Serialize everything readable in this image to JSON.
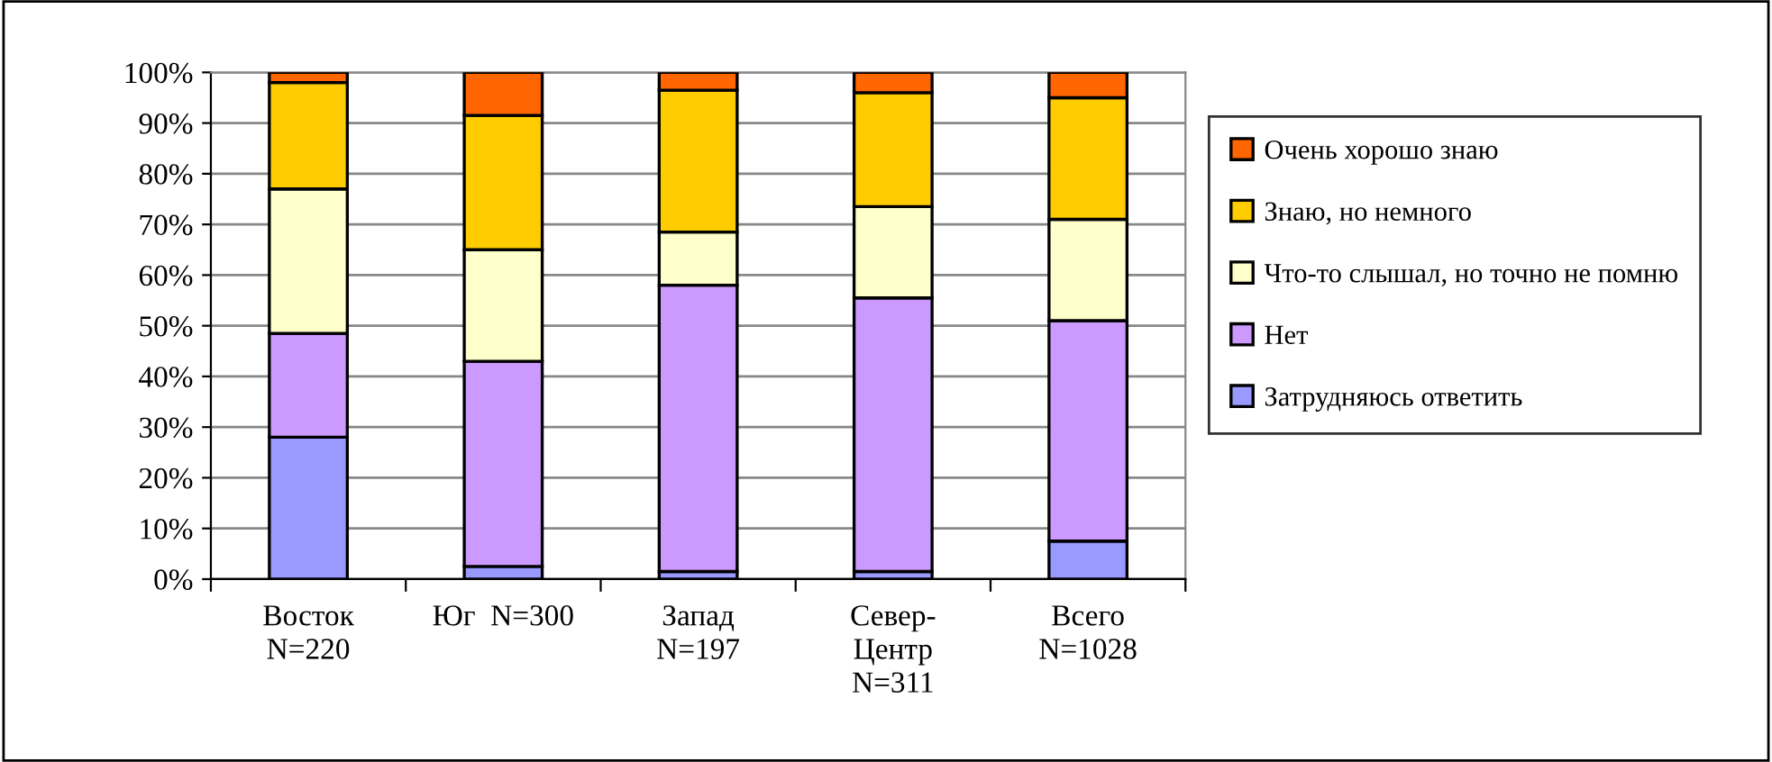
{
  "chart_data": {
    "type": "bar",
    "stacked": true,
    "categories": [
      "Восток\nN=220",
      "Юг  N=300",
      "Запад\nN=197",
      "Север-\nЦентр\nN=311",
      "Всего\nN=1028"
    ],
    "series": [
      {
        "name": "Затрудняюсь ответить",
        "color": "#9999ff",
        "values": [
          28,
          2.5,
          1.5,
          1.5,
          7.5
        ]
      },
      {
        "name": "Нет",
        "color": "#cc99ff",
        "values": [
          20.5,
          40.5,
          56.5,
          54,
          43.5
        ]
      },
      {
        "name": "Что-то слышал, но точно не помню",
        "color": "#ffffcc",
        "values": [
          28.5,
          22,
          10.5,
          18,
          20
        ]
      },
      {
        "name": "Знаю, но немного",
        "color": "#ffcc00",
        "values": [
          21,
          26.5,
          28,
          22.5,
          24
        ]
      },
      {
        "name": "Очень хорошо знаю",
        "color": "#ff6600",
        "values": [
          2,
          8.5,
          3.5,
          4,
          5
        ]
      }
    ],
    "ylim": [
      0,
      100
    ],
    "yticks": [
      {
        "value": 0,
        "label": "0%"
      },
      {
        "value": 10,
        "label": "10%"
      },
      {
        "value": 20,
        "label": "20%"
      },
      {
        "value": 30,
        "label": "30%"
      },
      {
        "value": 40,
        "label": "40%"
      },
      {
        "value": 50,
        "label": "50%"
      },
      {
        "value": 60,
        "label": "60%"
      },
      {
        "value": 70,
        "label": "70%"
      },
      {
        "value": 80,
        "label": "80%"
      },
      {
        "value": 90,
        "label": "90%"
      },
      {
        "value": 100,
        "label": "100%"
      }
    ],
    "grid": "y",
    "legend": "right"
  }
}
